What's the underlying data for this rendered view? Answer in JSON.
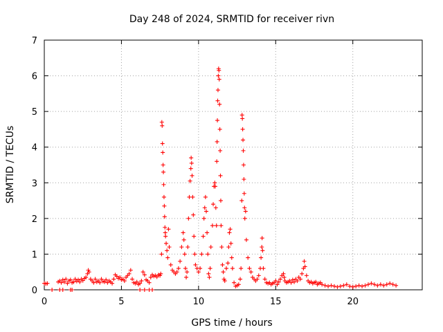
{
  "chart_data": {
    "type": "scatter",
    "title": "Day 248 of 2024, SRMTID for receiver rivn",
    "xlabel": "GPS time / hours",
    "ylabel": "SRMTID / TECUs",
    "xlim": [
      0,
      24.5
    ],
    "ylim": [
      0,
      7
    ],
    "xticks": [
      0,
      5,
      10,
      15,
      20
    ],
    "yticks": [
      0,
      1,
      2,
      3,
      4,
      5,
      6,
      7
    ],
    "grid": true,
    "marker": "+",
    "color": "#ff0000",
    "series": [
      {
        "name": "SRMTID",
        "points": [
          [
            0.0,
            0.18
          ],
          [
            0.1,
            0.17
          ],
          [
            0.2,
            0.18
          ],
          [
            0.5,
            0.0
          ],
          [
            1.0,
            0.0
          ],
          [
            1.2,
            0.0
          ],
          [
            1.7,
            0.0
          ],
          [
            1.8,
            0.0
          ],
          [
            6.2,
            0.0
          ],
          [
            6.5,
            0.0
          ],
          [
            6.8,
            0.0
          ],
          [
            7.0,
            0.0
          ],
          [
            0.9,
            0.22
          ],
          [
            1.0,
            0.25
          ],
          [
            1.1,
            0.2
          ],
          [
            1.2,
            0.28
          ],
          [
            1.3,
            0.22
          ],
          [
            1.4,
            0.3
          ],
          [
            1.5,
            0.18
          ],
          [
            1.6,
            0.25
          ],
          [
            1.7,
            0.28
          ],
          [
            1.8,
            0.2
          ],
          [
            1.9,
            0.22
          ],
          [
            2.0,
            0.3
          ],
          [
            2.1,
            0.24
          ],
          [
            2.2,
            0.28
          ],
          [
            2.3,
            0.22
          ],
          [
            2.4,
            0.3
          ],
          [
            2.5,
            0.26
          ],
          [
            2.6,
            0.32
          ],
          [
            2.7,
            0.35
          ],
          [
            2.8,
            0.45
          ],
          [
            2.85,
            0.55
          ],
          [
            2.9,
            0.5
          ],
          [
            3.0,
            0.3
          ],
          [
            3.1,
            0.25
          ],
          [
            3.2,
            0.2
          ],
          [
            3.3,
            0.3
          ],
          [
            3.4,
            0.22
          ],
          [
            3.5,
            0.25
          ],
          [
            3.6,
            0.2
          ],
          [
            3.7,
            0.3
          ],
          [
            3.8,
            0.24
          ],
          [
            3.9,
            0.22
          ],
          [
            4.0,
            0.28
          ],
          [
            4.1,
            0.2
          ],
          [
            4.2,
            0.25
          ],
          [
            4.3,
            0.22
          ],
          [
            4.4,
            0.18
          ],
          [
            4.5,
            0.3
          ],
          [
            4.6,
            0.42
          ],
          [
            4.7,
            0.38
          ],
          [
            4.8,
            0.32
          ],
          [
            4.9,
            0.35
          ],
          [
            5.0,
            0.28
          ],
          [
            5.1,
            0.3
          ],
          [
            5.2,
            0.25
          ],
          [
            5.3,
            0.35
          ],
          [
            5.4,
            0.4
          ],
          [
            5.5,
            0.45
          ],
          [
            5.6,
            0.55
          ],
          [
            5.7,
            0.3
          ],
          [
            5.8,
            0.2
          ],
          [
            5.9,
            0.18
          ],
          [
            6.0,
            0.22
          ],
          [
            6.1,
            0.15
          ],
          [
            6.2,
            0.18
          ],
          [
            6.3,
            0.25
          ],
          [
            6.4,
            0.5
          ],
          [
            6.5,
            0.42
          ],
          [
            6.6,
            0.28
          ],
          [
            6.7,
            0.25
          ],
          [
            6.8,
            0.2
          ],
          [
            6.9,
            0.35
          ],
          [
            7.0,
            0.42
          ],
          [
            7.1,
            0.38
          ],
          [
            7.2,
            0.4
          ],
          [
            7.3,
            0.36
          ],
          [
            7.4,
            0.42
          ],
          [
            7.5,
            0.4
          ],
          [
            7.55,
            0.45
          ],
          [
            7.6,
            1.0
          ],
          [
            7.62,
            4.7
          ],
          [
            7.64,
            4.6
          ],
          [
            7.66,
            4.1
          ],
          [
            7.68,
            3.85
          ],
          [
            7.7,
            3.5
          ],
          [
            7.72,
            3.3
          ],
          [
            7.74,
            2.95
          ],
          [
            7.76,
            2.6
          ],
          [
            7.78,
            2.35
          ],
          [
            7.8,
            2.05
          ],
          [
            7.82,
            1.75
          ],
          [
            7.84,
            1.6
          ],
          [
            7.86,
            1.5
          ],
          [
            7.9,
            1.3
          ],
          [
            7.95,
            1.1
          ],
          [
            8.0,
            0.9
          ],
          [
            8.05,
            1.7
          ],
          [
            8.1,
            1.2
          ],
          [
            8.2,
            0.7
          ],
          [
            8.3,
            0.55
          ],
          [
            8.4,
            0.5
          ],
          [
            8.5,
            0.45
          ],
          [
            8.6,
            0.5
          ],
          [
            8.7,
            0.6
          ],
          [
            8.8,
            0.8
          ],
          [
            8.9,
            1.2
          ],
          [
            9.0,
            1.6
          ],
          [
            9.05,
            1.4
          ],
          [
            9.1,
            1.0
          ],
          [
            9.15,
            0.6
          ],
          [
            9.2,
            0.35
          ],
          [
            9.25,
            0.5
          ],
          [
            9.3,
            1.2
          ],
          [
            9.35,
            2.0
          ],
          [
            9.4,
            2.6
          ],
          [
            9.45,
            3.05
          ],
          [
            9.5,
            3.4
          ],
          [
            9.52,
            3.7
          ],
          [
            9.55,
            3.55
          ],
          [
            9.58,
            3.2
          ],
          [
            9.62,
            2.6
          ],
          [
            9.66,
            2.1
          ],
          [
            9.7,
            1.5
          ],
          [
            9.75,
            1.0
          ],
          [
            9.8,
            0.7
          ],
          [
            9.9,
            0.6
          ],
          [
            10.0,
            0.5
          ],
          [
            10.1,
            0.6
          ],
          [
            10.2,
            1.0
          ],
          [
            10.3,
            1.5
          ],
          [
            10.35,
            2.0
          ],
          [
            10.4,
            2.3
          ],
          [
            10.45,
            2.6
          ],
          [
            10.5,
            2.2
          ],
          [
            10.55,
            1.6
          ],
          [
            10.6,
            1.0
          ],
          [
            10.65,
            0.45
          ],
          [
            10.7,
            0.35
          ],
          [
            10.75,
            0.6
          ],
          [
            10.8,
            1.2
          ],
          [
            10.9,
            1.8
          ],
          [
            10.95,
            2.4
          ],
          [
            11.0,
            2.9
          ],
          [
            11.05,
            3.0
          ],
          [
            11.08,
            2.9
          ],
          [
            11.12,
            2.3
          ],
          [
            11.16,
            1.8
          ],
          [
            11.18,
            3.6
          ],
          [
            11.2,
            4.15
          ],
          [
            11.22,
            4.75
          ],
          [
            11.24,
            5.3
          ],
          [
            11.26,
            5.6
          ],
          [
            11.28,
            6.0
          ],
          [
            11.3,
            6.2
          ],
          [
            11.32,
            6.15
          ],
          [
            11.34,
            5.9
          ],
          [
            11.36,
            5.2
          ],
          [
            11.38,
            4.5
          ],
          [
            11.4,
            3.9
          ],
          [
            11.42,
            3.2
          ],
          [
            11.44,
            2.5
          ],
          [
            11.46,
            1.8
          ],
          [
            11.5,
            1.2
          ],
          [
            11.55,
            0.7
          ],
          [
            11.6,
            0.5
          ],
          [
            11.65,
            0.3
          ],
          [
            11.7,
            0.25
          ],
          [
            11.8,
            0.6
          ],
          [
            11.9,
            0.75
          ],
          [
            11.95,
            1.2
          ],
          [
            12.0,
            1.6
          ],
          [
            12.05,
            1.7
          ],
          [
            12.1,
            1.3
          ],
          [
            12.15,
            0.9
          ],
          [
            12.2,
            0.6
          ],
          [
            12.3,
            0.2
          ],
          [
            12.4,
            0.1
          ],
          [
            12.5,
            0.12
          ],
          [
            12.6,
            0.15
          ],
          [
            12.7,
            0.3
          ],
          [
            12.75,
            0.6
          ],
          [
            12.8,
            2.5
          ],
          [
            12.82,
            4.9
          ],
          [
            12.84,
            4.8
          ],
          [
            12.86,
            4.5
          ],
          [
            12.88,
            4.2
          ],
          [
            12.9,
            3.9
          ],
          [
            12.92,
            3.5
          ],
          [
            12.94,
            3.1
          ],
          [
            12.96,
            2.7
          ],
          [
            12.98,
            2.3
          ],
          [
            13.0,
            2.0
          ],
          [
            13.05,
            2.2
          ],
          [
            13.1,
            1.4
          ],
          [
            13.2,
            0.9
          ],
          [
            13.3,
            0.6
          ],
          [
            13.4,
            0.5
          ],
          [
            13.5,
            0.35
          ],
          [
            13.6,
            0.3
          ],
          [
            13.7,
            0.25
          ],
          [
            13.8,
            0.3
          ],
          [
            13.9,
            0.4
          ],
          [
            14.0,
            0.6
          ],
          [
            14.05,
            0.9
          ],
          [
            14.1,
            1.2
          ],
          [
            14.12,
            1.45
          ],
          [
            14.15,
            1.1
          ],
          [
            14.2,
            0.6
          ],
          [
            14.3,
            0.3
          ],
          [
            14.4,
            0.2
          ],
          [
            14.5,
            0.18
          ],
          [
            14.6,
            0.2
          ],
          [
            14.7,
            0.15
          ],
          [
            14.8,
            0.18
          ],
          [
            14.9,
            0.2
          ],
          [
            15.0,
            0.25
          ],
          [
            15.1,
            0.15
          ],
          [
            15.2,
            0.22
          ],
          [
            15.3,
            0.3
          ],
          [
            15.4,
            0.4
          ],
          [
            15.5,
            0.45
          ],
          [
            15.55,
            0.35
          ],
          [
            15.6,
            0.25
          ],
          [
            15.7,
            0.2
          ],
          [
            15.8,
            0.22
          ],
          [
            15.9,
            0.25
          ],
          [
            16.0,
            0.2
          ],
          [
            16.1,
            0.28
          ],
          [
            16.2,
            0.22
          ],
          [
            16.3,
            0.3
          ],
          [
            16.4,
            0.25
          ],
          [
            16.5,
            0.35
          ],
          [
            16.6,
            0.3
          ],
          [
            16.7,
            0.45
          ],
          [
            16.8,
            0.6
          ],
          [
            16.85,
            0.8
          ],
          [
            16.9,
            0.65
          ],
          [
            17.0,
            0.4
          ],
          [
            17.1,
            0.25
          ],
          [
            17.2,
            0.2
          ],
          [
            17.3,
            0.22
          ],
          [
            17.4,
            0.18
          ],
          [
            17.5,
            0.2
          ],
          [
            17.6,
            0.22
          ],
          [
            17.7,
            0.15
          ],
          [
            17.8,
            0.18
          ],
          [
            17.9,
            0.2
          ],
          [
            18.0,
            0.15
          ],
          [
            18.2,
            0.12
          ],
          [
            18.4,
            0.1
          ],
          [
            18.6,
            0.12
          ],
          [
            18.8,
            0.1
          ],
          [
            19.0,
            0.08
          ],
          [
            19.2,
            0.1
          ],
          [
            19.4,
            0.12
          ],
          [
            19.6,
            0.15
          ],
          [
            19.8,
            0.1
          ],
          [
            20.0,
            0.08
          ],
          [
            20.2,
            0.1
          ],
          [
            20.4,
            0.12
          ],
          [
            20.6,
            0.1
          ],
          [
            20.8,
            0.12
          ],
          [
            21.0,
            0.15
          ],
          [
            21.2,
            0.18
          ],
          [
            21.4,
            0.15
          ],
          [
            21.6,
            0.12
          ],
          [
            21.8,
            0.15
          ],
          [
            22.0,
            0.12
          ],
          [
            22.2,
            0.15
          ],
          [
            22.4,
            0.18
          ],
          [
            22.6,
            0.15
          ],
          [
            22.8,
            0.12
          ]
        ]
      }
    ]
  }
}
